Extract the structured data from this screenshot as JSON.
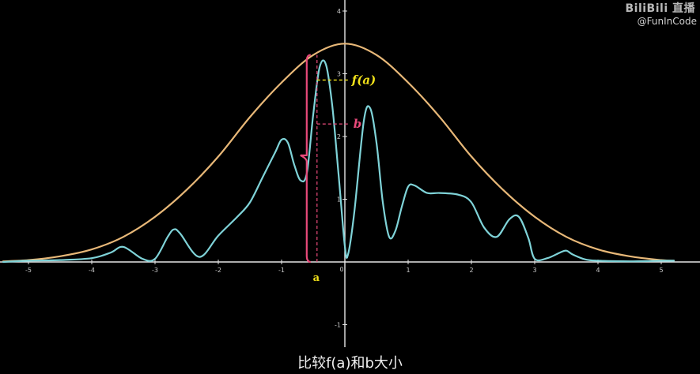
{
  "watermark": {
    "logo": "BiliBili 直播",
    "handle": "@FunInCode"
  },
  "subtitle": "比较f(a)和b大小",
  "labels": {
    "fa": "f(a)",
    "b": "b",
    "a": "a"
  },
  "colors": {
    "background": "#000000",
    "envelope": "#e8b878",
    "wave": "#7fd3d8",
    "fa_marker": "#f2e21a",
    "b_marker": "#e94a7b"
  },
  "chart_data": {
    "type": "line",
    "title": "",
    "xlabel": "",
    "ylabel": "",
    "xlim": [
      -5.4,
      5.2
    ],
    "ylim": [
      -1.3,
      4.1
    ],
    "x_ticks": [
      "-5",
      "-4",
      "-3",
      "-2",
      "-1",
      "0",
      "1",
      "2",
      "3",
      "4",
      "5"
    ],
    "y_ticks": [
      "-1",
      "1",
      "2",
      "3",
      "4"
    ],
    "a_value": -0.44,
    "b_value": 2.2,
    "fa_value": 2.9,
    "series": [
      {
        "name": "",
        "kind": "envelope",
        "x": [
          -5.4,
          -5,
          -4.5,
          -4,
          -3.5,
          -3,
          -2.5,
          -2,
          -1.5,
          -1,
          -0.5,
          0,
          0.5,
          1,
          1.5,
          2,
          2.5,
          3,
          3.5,
          4,
          4.5,
          5,
          5.2
        ],
        "y": [
          0.01,
          0.03,
          0.09,
          0.2,
          0.4,
          0.72,
          1.15,
          1.68,
          2.31,
          2.86,
          3.3,
          3.48,
          3.3,
          2.86,
          2.31,
          1.68,
          1.15,
          0.72,
          0.4,
          0.2,
          0.09,
          0.03,
          0.02
        ]
      },
      {
        "name": "",
        "kind": "oscillating",
        "x": [
          -5.4,
          -5,
          -4.5,
          -4,
          -3.7,
          -3.5,
          -3.2,
          -3,
          -2.8,
          -2.7,
          -2.6,
          -2.3,
          -2,
          -1.7,
          -1.5,
          -1.3,
          -1.1,
          -1,
          -0.9,
          -0.8,
          -0.7,
          -0.6,
          -0.5,
          -0.4,
          -0.3,
          -0.2,
          -0.1,
          0,
          0.05,
          0.15,
          0.3,
          0.4,
          0.5,
          0.6,
          0.7,
          0.8,
          0.9,
          1,
          1.1,
          1.3,
          1.5,
          1.8,
          2,
          2.2,
          2.4,
          2.6,
          2.75,
          2.9,
          3,
          3.2,
          3.4,
          3.5,
          3.6,
          3.8,
          4,
          4.5,
          5,
          5.2
        ],
        "y": [
          0,
          0.02,
          0.03,
          0.06,
          0.15,
          0.24,
          0.05,
          0.05,
          0.4,
          0.52,
          0.45,
          0.08,
          0.42,
          0.72,
          0.95,
          1.35,
          1.75,
          1.95,
          1.9,
          1.55,
          1.3,
          1.42,
          2.35,
          3.1,
          3.15,
          2.5,
          1.4,
          0.25,
          0.12,
          0.8,
          2.25,
          2.45,
          1.9,
          0.95,
          0.4,
          0.5,
          0.88,
          1.2,
          1.22,
          1.1,
          1.1,
          1.07,
          0.95,
          0.55,
          0.4,
          0.68,
          0.72,
          0.38,
          0.05,
          0.06,
          0.15,
          0.18,
          0.12,
          0.04,
          0.02,
          0.01,
          0.02,
          0.02
        ]
      }
    ]
  }
}
